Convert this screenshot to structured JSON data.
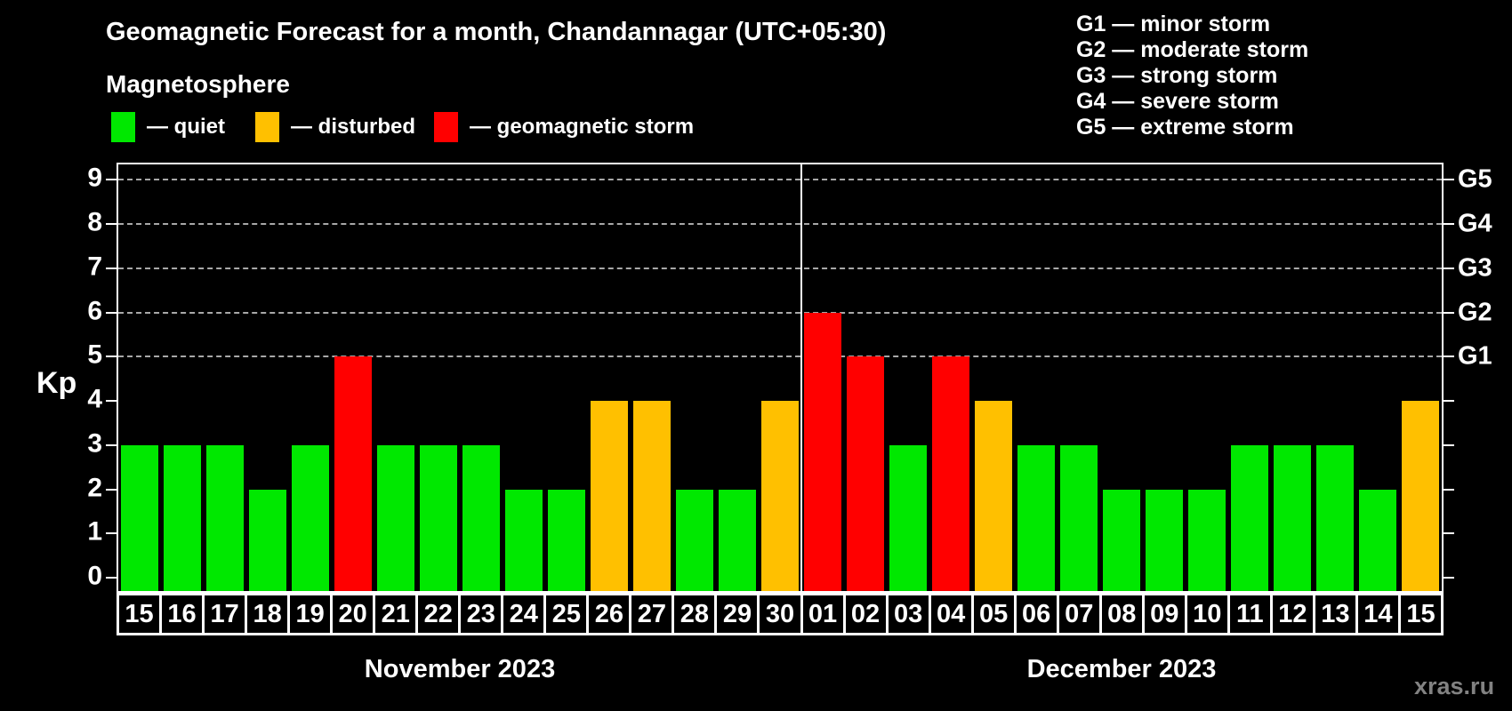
{
  "header": {
    "title": "Geomagnetic Forecast for a month, Chandannagar (UTC+05:30)",
    "subtitle": "Magnetosphere"
  },
  "legend": {
    "items": [
      {
        "state": "quiet",
        "label": "— quiet"
      },
      {
        "state": "disturbed",
        "label": "— disturbed"
      },
      {
        "state": "storm",
        "label": "— geomagnetic storm"
      }
    ]
  },
  "storm_scale_legend": [
    "G1 — minor storm",
    "G2 — moderate storm",
    "G3 — strong storm",
    "G4 — severe storm",
    "G5 — extreme storm"
  ],
  "colors": {
    "quiet": "#00e800",
    "disturbed": "#ffc000",
    "storm": "#ff0000",
    "axis": "#ffffff",
    "gridline": "#a8a8a8",
    "background": "#000000"
  },
  "watermark": "xras.ru",
  "chart_data": {
    "type": "bar",
    "title": "Geomagnetic Forecast for a month, Chandannagar (UTC+05:30)",
    "xlabel": "",
    "ylabel": "Kp",
    "ylim": [
      0,
      9.4
    ],
    "yticks": [
      0,
      1,
      2,
      3,
      4,
      5,
      6,
      7,
      8,
      9
    ],
    "gridlines_at": [
      5,
      6,
      7,
      8,
      9
    ],
    "grid": "dashed horizontal lines at storm levels only",
    "legend_position": "top-left",
    "right_axis": [
      {
        "kp": 5,
        "label": "G1"
      },
      {
        "kp": 6,
        "label": "G2"
      },
      {
        "kp": 7,
        "label": "G3"
      },
      {
        "kp": 8,
        "label": "G4"
      },
      {
        "kp": 9,
        "label": "G5"
      }
    ],
    "months": [
      {
        "label": "November 2023",
        "bars": [
          {
            "day": "15",
            "kp": 3,
            "state": "quiet"
          },
          {
            "day": "16",
            "kp": 3,
            "state": "quiet"
          },
          {
            "day": "17",
            "kp": 3,
            "state": "quiet"
          },
          {
            "day": "18",
            "kp": 2,
            "state": "quiet"
          },
          {
            "day": "19",
            "kp": 3,
            "state": "quiet"
          },
          {
            "day": "20",
            "kp": 5,
            "state": "storm"
          },
          {
            "day": "21",
            "kp": 3,
            "state": "quiet"
          },
          {
            "day": "22",
            "kp": 3,
            "state": "quiet"
          },
          {
            "day": "23",
            "kp": 3,
            "state": "quiet"
          },
          {
            "day": "24",
            "kp": 2,
            "state": "quiet"
          },
          {
            "day": "25",
            "kp": 2,
            "state": "quiet"
          },
          {
            "day": "26",
            "kp": 4,
            "state": "disturbed"
          },
          {
            "day": "27",
            "kp": 4,
            "state": "disturbed"
          },
          {
            "day": "28",
            "kp": 2,
            "state": "quiet"
          },
          {
            "day": "29",
            "kp": 2,
            "state": "quiet"
          },
          {
            "day": "30",
            "kp": 4,
            "state": "disturbed"
          }
        ]
      },
      {
        "label": "December 2023",
        "bars": [
          {
            "day": "01",
            "kp": 6,
            "state": "storm"
          },
          {
            "day": "02",
            "kp": 5,
            "state": "storm"
          },
          {
            "day": "03",
            "kp": 3,
            "state": "quiet"
          },
          {
            "day": "04",
            "kp": 5,
            "state": "storm"
          },
          {
            "day": "05",
            "kp": 4,
            "state": "disturbed"
          },
          {
            "day": "06",
            "kp": 3,
            "state": "quiet"
          },
          {
            "day": "07",
            "kp": 3,
            "state": "quiet"
          },
          {
            "day": "08",
            "kp": 2,
            "state": "quiet"
          },
          {
            "day": "09",
            "kp": 2,
            "state": "quiet"
          },
          {
            "day": "10",
            "kp": 2,
            "state": "quiet"
          },
          {
            "day": "11",
            "kp": 3,
            "state": "quiet"
          },
          {
            "day": "12",
            "kp": 3,
            "state": "quiet"
          },
          {
            "day": "13",
            "kp": 3,
            "state": "quiet"
          },
          {
            "day": "14",
            "kp": 2,
            "state": "quiet"
          },
          {
            "day": "15",
            "kp": 4,
            "state": "disturbed"
          }
        ]
      }
    ]
  }
}
